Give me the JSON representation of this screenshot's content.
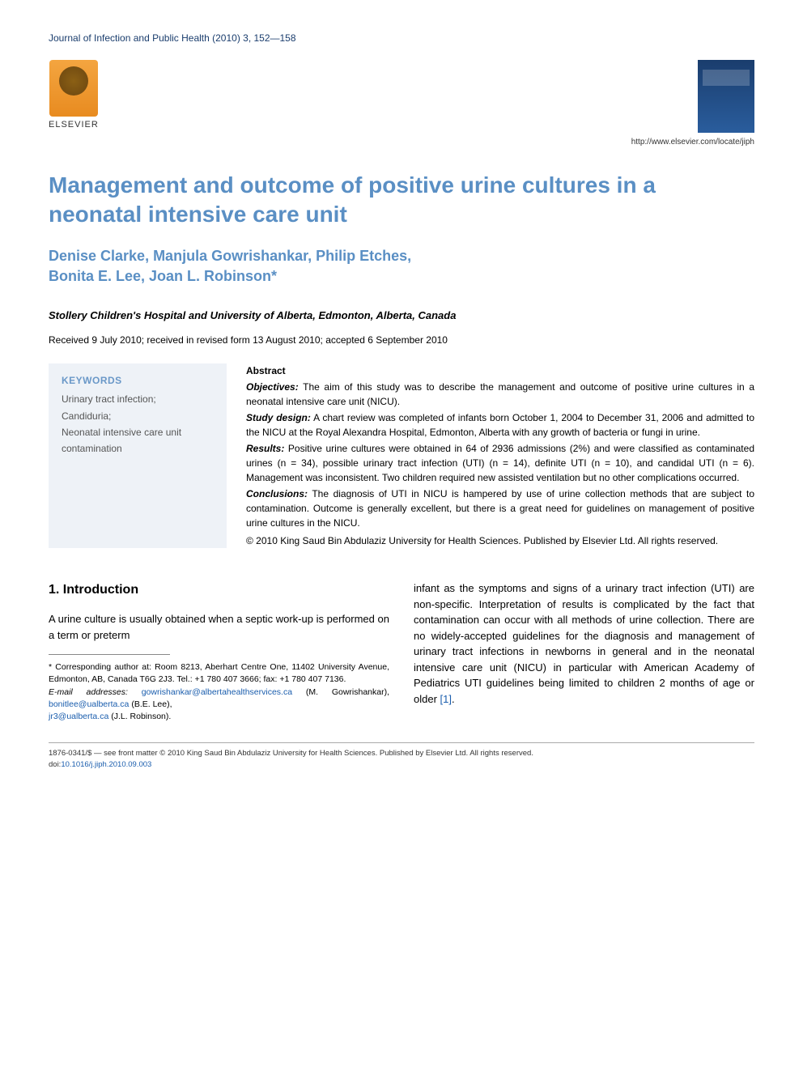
{
  "header": {
    "citation": "Journal of Infection and Public Health (2010) 3, 152—158",
    "publisher_label": "ELSEVIER",
    "journal_url": "http://www.elsevier.com/locate/jiph"
  },
  "article": {
    "title": "Management and outcome of positive urine cultures in a neonatal intensive care unit",
    "authors_line1": "Denise Clarke, Manjula Gowrishankar, Philip Etches,",
    "authors_line2": "Bonita E. Lee, Joan L. Robinson*",
    "affiliation": "Stollery Children's Hospital and University of Alberta, Edmonton, Alberta, Canada",
    "dates": "Received 9 July 2010; received in revised form 13 August 2010; accepted 6 September 2010"
  },
  "keywords": {
    "heading": "KEYWORDS",
    "items": "Urinary tract infection;\nCandiduria;\nNeonatal intensive care unit contamination"
  },
  "abstract": {
    "heading": "Abstract",
    "objectives_label": "Objectives:",
    "objectives_text": " The aim of this study was to describe the management and outcome of positive urine cultures in a neonatal intensive care unit (NICU).",
    "design_label": "Study design:",
    "design_text": " A chart review was completed of infants born October 1, 2004 to December 31, 2006 and admitted to the NICU at the Royal Alexandra Hospital, Edmonton, Alberta with any growth of bacteria or fungi in urine.",
    "results_label": "Results:",
    "results_text": " Positive urine cultures were obtained in 64 of 2936 admissions (2%) and were classified as contaminated urines (n = 34), possible urinary tract infection (UTI) (n = 14), definite UTI (n = 10), and candidal UTI (n = 6). Management was inconsistent. Two children required new assisted ventilation but no other complications occurred.",
    "conclusions_label": "Conclusions:",
    "conclusions_text": " The diagnosis of UTI in NICU is hampered by use of urine collection methods that are subject to contamination. Outcome is generally excellent, but there is a great need for guidelines on management of positive urine cultures in the NICU.",
    "copyright": "© 2010 King Saud Bin Abdulaziz University for Health Sciences. Published by Elsevier Ltd. All rights reserved."
  },
  "intro": {
    "heading": "1. Introduction",
    "col1_text": "A urine culture is usually obtained when a septic work-up is performed on a term or preterm",
    "col2_text_part1": "infant as the symptoms and signs of a urinary tract infection (UTI) are non-specific. Interpretation of results is complicated by the fact that contamination can occur with all methods of urine collection. There are no widely-accepted guidelines for the diagnosis and management of urinary tract infections in newborns in general and in the neonatal intensive care unit (NICU) in particular with American Academy of Pediatrics UTI guidelines being limited to children 2 months of age or older ",
    "col2_ref": "[1]",
    "col2_text_part2": "."
  },
  "footnote": {
    "corresponding": "* Corresponding author at: Room 8213, Aberhart Centre One, 11402 University Avenue, Edmonton, AB, Canada T6G 2J3. Tel.: +1 780 407 3666; fax: +1 780 407 7136.",
    "email_label": "E-mail addresses:",
    "email1": "gowrishankar@albertahealthservices.ca",
    "email1_name": " (M. Gowrishankar), ",
    "email2": "bonitlee@ualberta.ca",
    "email2_name": " (B.E. Lee), ",
    "email3": "jr3@ualberta.ca",
    "email3_name": " (J.L. Robinson)."
  },
  "footer": {
    "front_matter": "1876-0341/$ — see front matter © 2010 King Saud Bin Abdulaziz University for Health Sciences. Published by Elsevier Ltd. All rights reserved.",
    "doi_label": "doi:",
    "doi": "10.1016/j.jiph.2010.09.003"
  },
  "colors": {
    "heading_blue": "#5a8fc4",
    "link_blue": "#1a5dad",
    "keywords_bg": "#eef2f7",
    "elsevier_orange": "#e88b20",
    "journal_blue": "#1a3d6d"
  },
  "typography": {
    "title_fontsize": 28,
    "authors_fontsize": 18,
    "body_fontsize": 13,
    "abstract_fontsize": 12,
    "footnote_fontsize": 10.5,
    "footer_fontsize": 9.5
  }
}
